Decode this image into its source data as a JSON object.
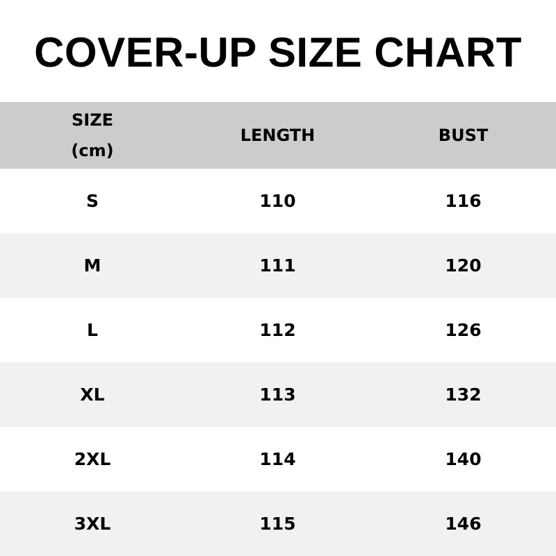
{
  "title": "COVER-UP SIZE CHART",
  "table": {
    "headers": [
      "SIZE",
      "(cm)",
      "LENGTH",
      "BUST"
    ],
    "rows": [
      [
        "S",
        "110",
        "116"
      ],
      [
        "M",
        "111",
        "120"
      ],
      [
        "L",
        "112",
        "126"
      ],
      [
        "XL",
        "113",
        "132"
      ],
      [
        "2XL",
        "114",
        "140"
      ],
      [
        "3XL",
        "115",
        "146"
      ]
    ]
  },
  "colors": {
    "header_bg": "#cccccc",
    "alt_row_bg": "#f1f1f1"
  }
}
